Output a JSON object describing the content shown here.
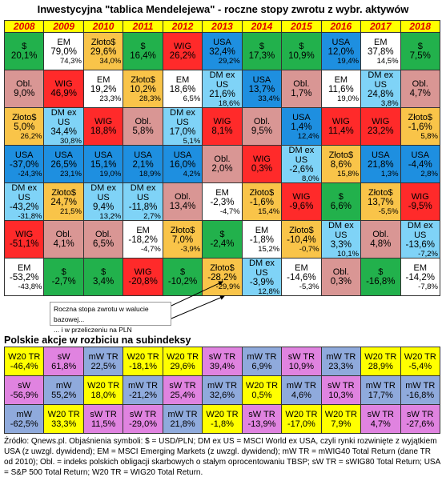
{
  "title": "Inwestycyjna \"tablica Mendelejewa\" - roczne stopy zwrotu z wybr. aktywów",
  "asset_colors": {
    "$": "#22b14c",
    "Obl.": "#d99694",
    "Złoto$": "#f9c449",
    "USA": "#1e8fe0",
    "DM ex US": "#7fd3f7",
    "WIG": "#ff2a2a",
    "EM": "#ffffff"
  },
  "columns": [
    {
      "year": "2008",
      "cells": [
        {
          "label": "$",
          "value": "20,1%"
        },
        {
          "label": "Obl.",
          "value": "9,0%"
        },
        {
          "label": "Złoto$",
          "value": "5,0%",
          "pln": "26,2%"
        },
        {
          "label": "USA",
          "value": "-37,0%",
          "pln": "-24,3%"
        },
        {
          "label": "DM ex US",
          "value": "-43,2%",
          "pln": "-31,8%"
        },
        {
          "label": "WIG",
          "value": "-51,1%"
        },
        {
          "label": "EM",
          "value": "-53,2%",
          "pln": "-43,8%"
        }
      ]
    },
    {
      "year": "2009",
      "cells": [
        {
          "label": "EM",
          "value": "79,0%",
          "pln": "74,3%"
        },
        {
          "label": "WIG",
          "value": "46,9%"
        },
        {
          "label": "DM ex US",
          "value": "34,4%",
          "pln": "30,8%"
        },
        {
          "label": "USA",
          "value": "26,5%",
          "pln": "23,1%"
        },
        {
          "label": "Złoto$",
          "value": "24,7%",
          "pln": "21,5%"
        },
        {
          "label": "Obl.",
          "value": "4,1%"
        },
        {
          "label": "$",
          "value": "-2,7%"
        }
      ]
    },
    {
      "year": "2010",
      "cells": [
        {
          "label": "Złoto$",
          "value": "29,6%",
          "pln": "34,0%"
        },
        {
          "label": "EM",
          "value": "19,2%",
          "pln": "23,3%"
        },
        {
          "label": "WIG",
          "value": "18,8%"
        },
        {
          "label": "USA",
          "value": "15,1%",
          "pln": "19,0%"
        },
        {
          "label": "DM ex US",
          "value": "9,4%",
          "pln": "13,2%"
        },
        {
          "label": "Obl.",
          "value": "6,5%"
        },
        {
          "label": "$",
          "value": "3,4%"
        }
      ]
    },
    {
      "year": "2011",
      "cells": [
        {
          "label": "$",
          "value": "16,4%"
        },
        {
          "label": "Złoto$",
          "value": "10,2%",
          "pln": "28,3%"
        },
        {
          "label": "Obl.",
          "value": "5,8%"
        },
        {
          "label": "USA",
          "value": "2,1%",
          "pln": "18,9%"
        },
        {
          "label": "DM ex US",
          "value": "-11,8%",
          "pln": "2,7%"
        },
        {
          "label": "EM",
          "value": "-18,2%",
          "pln": "-4,7%"
        },
        {
          "label": "WIG",
          "value": "-20,8%"
        }
      ]
    },
    {
      "year": "2012",
      "cells": [
        {
          "label": "WIG",
          "value": "26,2%"
        },
        {
          "label": "EM",
          "value": "18,6%",
          "pln": "6,5%"
        },
        {
          "label": "DM ex US",
          "value": "17,0%",
          "pln": "5,1%"
        },
        {
          "label": "USA",
          "value": "16,0%",
          "pln": "4,2%"
        },
        {
          "label": "Obl.",
          "value": "13,4%"
        },
        {
          "label": "Złoto$",
          "value": "7,0%",
          "pln": "-3,9%"
        },
        {
          "label": "$",
          "value": "-10,2%"
        }
      ]
    },
    {
      "year": "2013",
      "cells": [
        {
          "label": "USA",
          "value": "32,4%",
          "pln": "29,2%"
        },
        {
          "label": "DM ex US",
          "value": "21,6%",
          "pln": "18,6%"
        },
        {
          "label": "WIG",
          "value": "8,1%"
        },
        {
          "label": "Obl.",
          "value": "2,0%"
        },
        {
          "label": "EM",
          "value": "-2,3%",
          "pln": "-4,7%"
        },
        {
          "label": "$",
          "value": "-2,4%"
        },
        {
          "label": "Złoto$",
          "value": "-28,2%",
          "pln": "-29,9%"
        }
      ]
    },
    {
      "year": "2014",
      "cells": [
        {
          "label": "$",
          "value": "17,3%"
        },
        {
          "label": "USA",
          "value": "13,7%",
          "pln": "33,4%"
        },
        {
          "label": "Obl.",
          "value": "9,5%"
        },
        {
          "label": "WIG",
          "value": "0,3%"
        },
        {
          "label": "Złoto$",
          "value": "-1,6%",
          "pln": "15,4%"
        },
        {
          "label": "EM",
          "value": "-1,8%",
          "pln": "15,2%"
        },
        {
          "label": "DM ex US",
          "value": "-3,9%",
          "pln": "12,8%"
        }
      ]
    },
    {
      "year": "2015",
      "cells": [
        {
          "label": "$",
          "value": "10,9%"
        },
        {
          "label": "Obl.",
          "value": "1,7%"
        },
        {
          "label": "USA",
          "value": "1,4%",
          "pln": "12,4%"
        },
        {
          "label": "DM ex US",
          "value": "-2,6%",
          "pln": "8,0%"
        },
        {
          "label": "WIG",
          "value": "-9,6%"
        },
        {
          "label": "Złoto$",
          "value": "-10,4%",
          "pln": "-0,7%"
        },
        {
          "label": "EM",
          "value": "-14,6%",
          "pln": "-5,3%"
        }
      ]
    },
    {
      "year": "2016",
      "cells": [
        {
          "label": "USA",
          "value": "12,0%",
          "pln": "19,4%"
        },
        {
          "label": "EM",
          "value": "11,6%",
          "pln": "19,0%"
        },
        {
          "label": "WIG",
          "value": "11,4%"
        },
        {
          "label": "Złoto$",
          "value": "8,6%",
          "pln": "15,8%"
        },
        {
          "label": "$",
          "value": "6,6%"
        },
        {
          "label": "DM ex US",
          "value": "3,3%",
          "pln": "10,1%"
        },
        {
          "label": "Obl.",
          "value": "0,3%"
        }
      ]
    },
    {
      "year": "2017",
      "cells": [
        {
          "label": "EM",
          "value": "37,8%",
          "pln": "14,5%"
        },
        {
          "label": "DM ex US",
          "value": "24,8%",
          "pln": "3,8%"
        },
        {
          "label": "WIG",
          "value": "23,2%"
        },
        {
          "label": "USA",
          "value": "21,8%",
          "pln": "1,3%"
        },
        {
          "label": "Złoto$",
          "value": "13,7%",
          "pln": "-5,5%"
        },
        {
          "label": "Obl.",
          "value": "4,8%"
        },
        {
          "label": "$",
          "value": "-16,8%"
        }
      ]
    },
    {
      "year": "2018",
      "cells": [
        {
          "label": "$",
          "value": "7,5%"
        },
        {
          "label": "Obl.",
          "value": "4,7%"
        },
        {
          "label": "Złoto$",
          "value": "-1,6%",
          "pln": "5,8%"
        },
        {
          "label": "USA",
          "value": "-4,4%",
          "pln": "2,8%"
        },
        {
          "label": "WIG",
          "value": "-9,5%"
        },
        {
          "label": "DM ex US",
          "value": "-13,6%",
          "pln": "-7,2%"
        },
        {
          "label": "EM",
          "value": "-14,2%",
          "pln": "-7,8%"
        }
      ]
    }
  ],
  "annotation": {
    "line1": "Roczna stopa zwrotu w walucie bazowej...",
    "line2": "... i w przeliczeniu na PLN"
  },
  "sub_title": "Polskie akcje w rozbiciu na subindeksy",
  "sub_colors": {
    "W20": "#ffff00",
    "sW": "#e083e0",
    "mW": "#8faadc"
  },
  "sub_columns": [
    [
      {
        "label": "W20 TR",
        "group": "W20",
        "value": "-46,4%"
      },
      {
        "label": "sW",
        "group": "sW",
        "value": "-56,9%"
      },
      {
        "label": "mW",
        "group": "mW",
        "value": "-62,5%"
      }
    ],
    [
      {
        "label": "sW",
        "group": "sW",
        "value": "61,8%"
      },
      {
        "label": "mW",
        "group": "mW",
        "value": "55,2%"
      },
      {
        "label": "W20 TR",
        "group": "W20",
        "value": "33,3%"
      }
    ],
    [
      {
        "label": "mW TR",
        "group": "mW",
        "value": "22,5%"
      },
      {
        "label": "W20 TR",
        "group": "W20",
        "value": "18,0%"
      },
      {
        "label": "sW TR",
        "group": "sW",
        "value": "11,5%"
      }
    ],
    [
      {
        "label": "W20 TR",
        "group": "W20",
        "value": "-18,1%"
      },
      {
        "label": "mW TR",
        "group": "mW",
        "value": "-21,2%"
      },
      {
        "label": "sW TR",
        "group": "sW",
        "value": "-29,0%"
      }
    ],
    [
      {
        "label": "W20 TR",
        "group": "W20",
        "value": "29,6%"
      },
      {
        "label": "sW TR",
        "group": "sW",
        "value": "25,4%"
      },
      {
        "label": "mW TR",
        "group": "mW",
        "value": "21,8%"
      }
    ],
    [
      {
        "label": "sW TR",
        "group": "sW",
        "value": "39,4%"
      },
      {
        "label": "mW TR",
        "group": "mW",
        "value": "32,6%"
      },
      {
        "label": "W20 TR",
        "group": "W20",
        "value": "-1,8%"
      }
    ],
    [
      {
        "label": "mW TR",
        "group": "mW",
        "value": "6,9%"
      },
      {
        "label": "W20 TR",
        "group": "W20",
        "value": "0,5%"
      },
      {
        "label": "sW TR",
        "group": "sW",
        "value": "-13,9%"
      }
    ],
    [
      {
        "label": "sW TR",
        "group": "sW",
        "value": "10,9%"
      },
      {
        "label": "mW TR",
        "group": "mW",
        "value": "4,6%"
      },
      {
        "label": "W20 TR",
        "group": "W20",
        "value": "-17,0%"
      }
    ],
    [
      {
        "label": "mW TR",
        "group": "mW",
        "value": "23,3%"
      },
      {
        "label": "sW TR",
        "group": "sW",
        "value": "10,3%"
      },
      {
        "label": "W20 TR",
        "group": "W20",
        "value": "7,9%"
      }
    ],
    [
      {
        "label": "W20 TR",
        "group": "W20",
        "value": "28,9%"
      },
      {
        "label": "mW TR",
        "group": "mW",
        "value": "17,7%"
      },
      {
        "label": "sW TR",
        "group": "sW",
        "value": "4,7%"
      }
    ],
    [
      {
        "label": "W20 TR",
        "group": "W20",
        "value": "-5,4%"
      },
      {
        "label": "mW TR",
        "group": "mW",
        "value": "-16,8%"
      },
      {
        "label": "sW TR",
        "group": "sW",
        "value": "-27,6%"
      }
    ]
  ],
  "footnote": "Źródło: Qnews.pl. Objaśnienia symboli: $ = USD/PLN; DM ex US = MSCI World ex USA, czyli rynki rozwinięte z wyjątkiem USA (z uwzgl. dywidend); EM = MSCI Emerging Markets (z uwzgl. dywidend); mW TR = mWIG40 Total Return (dane TR od 2010); Obl. = indeks polskich obligacji skarbowych o stałym oprocentowaniu TBSP; sW TR = sWIG80 Total Return; USA = S&P 500 Total Return; W20 TR = WIG20 Total Return."
}
